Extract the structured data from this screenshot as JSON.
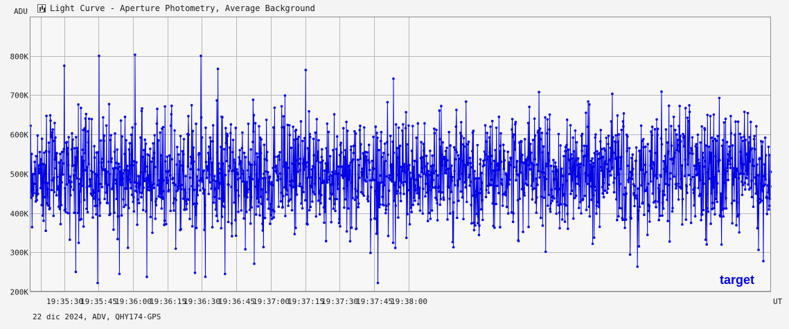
{
  "window": {
    "title": "Light Curve - Aperture Photometry, Average Background",
    "icon": "chart-icon",
    "footer": "22 dic 2024, ADV, QHY174-GPS"
  },
  "chart_data": {
    "type": "line",
    "ylabel": "ADU",
    "xlabel": "UT",
    "ylim": [
      200000,
      900000
    ],
    "yticks": [
      {
        "value": 200000,
        "label": "200K"
      },
      {
        "value": 300000,
        "label": "300K"
      },
      {
        "value": 400000,
        "label": "400K"
      },
      {
        "value": 500000,
        "label": "500K"
      },
      {
        "value": 600000,
        "label": "600K"
      },
      {
        "value": 700000,
        "label": "700K"
      },
      {
        "value": 800000,
        "label": "800K"
      }
    ],
    "xlim_seconds": [
      70515,
      70838
    ],
    "xticks": [
      {
        "value": 70530,
        "label": "19:35:30"
      },
      {
        "value": 70545,
        "label": "19:35:45"
      },
      {
        "value": 70560,
        "label": "19:36:00"
      },
      {
        "value": 70575,
        "label": "19:36:15"
      },
      {
        "value": 70590,
        "label": "19:36:30"
      },
      {
        "value": 70605,
        "label": "19:36:45"
      },
      {
        "value": 70620,
        "label": "19:37:00"
      },
      {
        "value": 70635,
        "label": "19:37:15"
      },
      {
        "value": 70650,
        "label": "19:37:30"
      },
      {
        "value": 70665,
        "label": "19:37:45"
      },
      {
        "value": 70680,
        "label": "19:38:00"
      }
    ],
    "grid": true,
    "legend_position": "bottom-right",
    "series": [
      {
        "name": "target",
        "color": "#0000e6",
        "marker": "dot",
        "point_count": 2000,
        "mean": 500000,
        "spread": 75000,
        "min": 220000,
        "max": 805000,
        "notable_points": [
          {
            "x": 70530.0,
            "y": 775000
          },
          {
            "x": 70545.2,
            "y": 800000
          },
          {
            "x": 70560.8,
            "y": 803000
          },
          {
            "x": 70589.6,
            "y": 800000
          },
          {
            "x": 70597.0,
            "y": 767000
          },
          {
            "x": 70544.5,
            "y": 222000
          },
          {
            "x": 70666.7,
            "y": 222000
          },
          {
            "x": 70535.0,
            "y": 250000
          },
          {
            "x": 70587.0,
            "y": 248000
          },
          {
            "x": 70600.0,
            "y": 245000
          },
          {
            "x": 70554.0,
            "y": 245000
          },
          {
            "x": 70635.2,
            "y": 764000
          },
          {
            "x": 70673.5,
            "y": 742000
          }
        ]
      }
    ]
  }
}
